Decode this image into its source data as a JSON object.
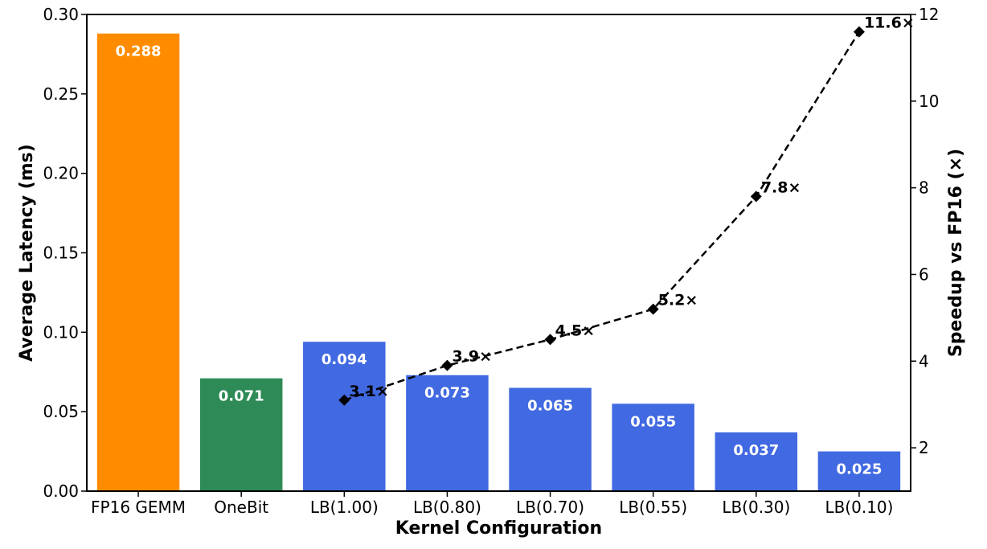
{
  "chart_data": {
    "type": "bar",
    "title": "",
    "xlabel": "Kernel Configuration",
    "ylabel": "Average Latency (ms)",
    "y2label": "Speedup vs FP16 (×)",
    "ylim": [
      0,
      0.3
    ],
    "y2lim": [
      1,
      12
    ],
    "yticks": [
      "0.00",
      "0.05",
      "0.10",
      "0.15",
      "0.20",
      "0.25",
      "0.30"
    ],
    "y2ticks": [
      "2",
      "4",
      "6",
      "8",
      "10",
      "12"
    ],
    "categories": [
      "FP16 GEMM",
      "OneBit",
      "LB(1.00)",
      "LB(0.80)",
      "LB(0.70)",
      "LB(0.55)",
      "LB(0.30)",
      "LB(0.10)"
    ],
    "values": [
      0.288,
      0.071,
      0.094,
      0.073,
      0.065,
      0.055,
      0.037,
      0.025
    ],
    "value_labels": [
      "0.288",
      "0.071",
      "0.094",
      "0.073",
      "0.065",
      "0.055",
      "0.037",
      "0.025"
    ],
    "colors": [
      "#FF8C00",
      "#2E8B57",
      "#4169E1",
      "#4169E1",
      "#4169E1",
      "#4169E1",
      "#4169E1",
      "#4169E1"
    ],
    "speedup": {
      "categories": [
        "LB(1.00)",
        "LB(0.80)",
        "LB(0.70)",
        "LB(0.55)",
        "LB(0.30)",
        "LB(0.10)"
      ],
      "values": [
        3.1,
        3.9,
        4.5,
        5.2,
        7.8,
        11.6
      ],
      "labels": [
        "3.1×",
        "3.9×",
        "4.5×",
        "5.2×",
        "7.8×",
        "11.6×"
      ],
      "line_style": "dashed",
      "marker": "diamond",
      "color": "#000000"
    }
  }
}
